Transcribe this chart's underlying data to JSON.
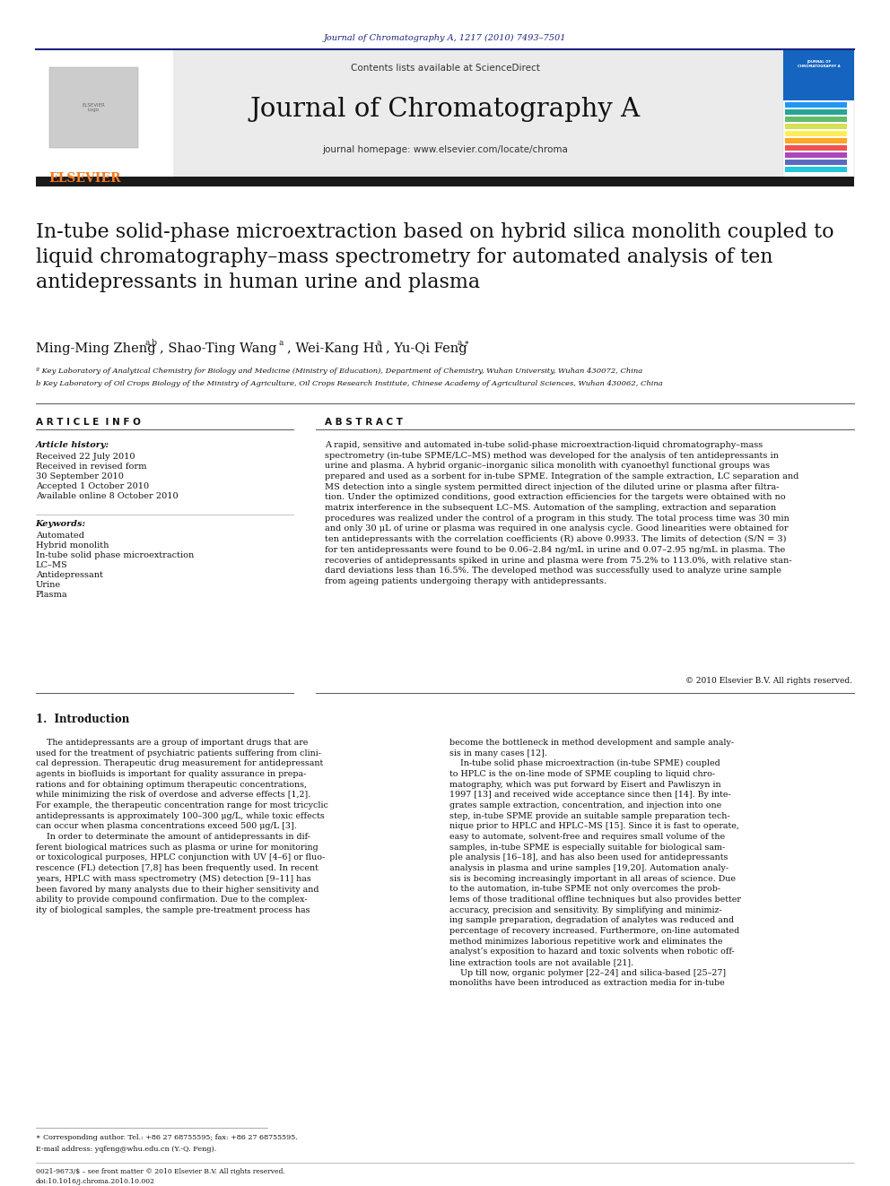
{
  "page_width": 9.92,
  "page_height": 13.23,
  "bg_color": "#ffffff",
  "header_journal_ref": "Journal of Chromatography A, 1217 (2010) 7493–7501",
  "header_ref_color": "#1a237e",
  "journal_title": "Journal of Chromatography A",
  "contents_text": "Contents lists available at ScienceDirect",
  "homepage_text": "journal homepage: www.elsevier.com/locate/chroma",
  "article_title": "In-tube solid-phase microextraction based on hybrid silica monolith coupled to\nliquid chromatography–mass spectrometry for automated analysis of ten\nantidepressants in human urine and plasma",
  "affil1": "ª Key Laboratory of Analytical Chemistry for Biology and Medicine (Ministry of Education), Department of Chemistry, Wuhan University, Wuhan 430072, China",
  "affil2": "b Key Laboratory of Oil Crops Biology of the Ministry of Agriculture, Oil Crops Research Institute, Chinese Academy of Agricultural Sciences, Wuhan 430062, China",
  "section_left": "A R T I C L E  I N F O",
  "section_right": "A B S T R A C T",
  "article_history_label": "Article history:",
  "history_lines": [
    "Received 22 July 2010",
    "Received in revised form",
    "30 September 2010",
    "Accepted 1 October 2010",
    "Available online 8 October 2010"
  ],
  "keywords_label": "Keywords:",
  "keywords": [
    "Automated",
    "Hybrid monolith",
    "In-tube solid phase microextraction",
    "LC–MS",
    "Antidepressant",
    "Urine",
    "Plasma"
  ],
  "abstract_text": "A rapid, sensitive and automated in-tube solid-phase microextraction-liquid chromatography–mass\nspectrometry (in-tube SPME/LC–MS) method was developed for the analysis of ten antidepressants in\nurine and plasma. A hybrid organic–inorganic silica monolith with cyanoethyl functional groups was\nprepared and used as a sorbent for in-tube SPME. Integration of the sample extraction, LC separation and\nMS detection into a single system permitted direct injection of the diluted urine or plasma after filtra-\ntion. Under the optimized conditions, good extraction efficiencies for the targets were obtained with no\nmatrix interference in the subsequent LC–MS. Automation of the sampling, extraction and separation\nprocedures was realized under the control of a program in this study. The total process time was 30 min\nand only 30 μL of urine or plasma was required in one analysis cycle. Good linearities were obtained for\nten antidepressants with the correlation coefficients (R) above 0.9933. The limits of detection (S/N = 3)\nfor ten antidepressants were found to be 0.06–2.84 ng/mL in urine and 0.07–2.95 ng/mL in plasma. The\nrecoveries of antidepressants spiked in urine and plasma were from 75.2% to 113.0%, with relative stan-\ndard deviations less than 16.5%. The developed method was successfully used to analyze urine sample\nfrom ageing patients undergoing therapy with antidepressants.",
  "copyright_text": "© 2010 Elsevier B.V. All rights reserved.",
  "intro_section": "1.  Introduction",
  "intro_left_text": "    The antidepressants are a group of important drugs that are\nused for the treatment of psychiatric patients suffering from clini-\ncal depression. Therapeutic drug measurement for antidepressant\nagents in biofluids is important for quality assurance in prepa-\nrations and for obtaining optimum therapeutic concentrations,\nwhile minimizing the risk of overdose and adverse effects [1,2].\nFor example, the therapeutic concentration range for most tricyclic\nantidepressants is approximately 100–300 μg/L, while toxic effects\ncan occur when plasma concentrations exceed 500 μg/L [3].\n    In order to determinate the amount of antidepressants in dif-\nferent biological matrices such as plasma or urine for monitoring\nor toxicological purposes, HPLC conjunction with UV [4–6] or fluo-\nrescence (FL) detection [7,8] has been frequently used. In recent\nyears, HPLC with mass spectrometry (MS) detection [9–11] has\nbeen favored by many analysts due to their higher sensitivity and\nability to provide compound confirmation. Due to the complex-\nity of biological samples, the sample pre-treatment process has",
  "intro_right_text": "become the bottleneck in method development and sample analy-\nsis in many cases [12].\n    In-tube solid phase microextraction (in-tube SPME) coupled\nto HPLC is the on-line mode of SPME coupling to liquid chro-\nmatography, which was put forward by Eisert and Pawliszyn in\n1997 [13] and received wide acceptance since then [14]. By inte-\ngrates sample extraction, concentration, and injection into one\nstep, in-tube SPME provide an suitable sample preparation tech-\nnique prior to HPLC and HPLC–MS [15]. Since it is fast to operate,\neasy to automate, solvent-free and requires small volume of the\nsamples, in-tube SPME is especially suitable for biological sam-\nple analysis [16–18], and has also been used for antidepressants\nanalysis in plasma and urine samples [19,20]. Automation analy-\nsis is becoming increasingly important in all areas of science. Due\nto the automation, in-tube SPME not only overcomes the prob-\nlems of those traditional offline techniques but also provides better\naccuracy, precision and sensitivity. By simplifying and minimiz-\ning sample preparation, degradation of analytes was reduced and\npercentage of recovery increased. Furthermore, on-line automated\nmethod minimizes laborious repetitive work and eliminates the\nanalyst’s exposition to hazard and toxic solvents when robotic off-\nline extraction tools are not available [21].\n    Up till now, organic polymer [22–24] and silica-based [25–27]\nmonoliths have been introduced as extraction media for in-tube",
  "footnote_star": "∗ Corresponding author. Tel.: +86 27 68755595; fax: +86 27 68755595.",
  "footnote_email": "E-mail address: yqfeng@whu.edu.cn (Y.-Q. Feng).",
  "footer_issn": "0021-9673/$ – see front matter © 2010 Elsevier B.V. All rights reserved.",
  "footer_doi": "doi:10.1016/j.chroma.2010.10.002",
  "elsevier_orange": "#f47920",
  "elsevier_text": "ELSEVIER",
  "cover_colors_top": [
    "#1a5276",
    "#1a5276",
    "#1a5276",
    "#1a5276",
    "#1a5276"
  ],
  "cover_colors_spectrum": [
    "#2196f3",
    "#26a69a",
    "#66bb6a",
    "#d4e157",
    "#ffee58",
    "#ffa726",
    "#ef5350",
    "#ab47bc",
    "#5c6bc0",
    "#26c6da"
  ]
}
